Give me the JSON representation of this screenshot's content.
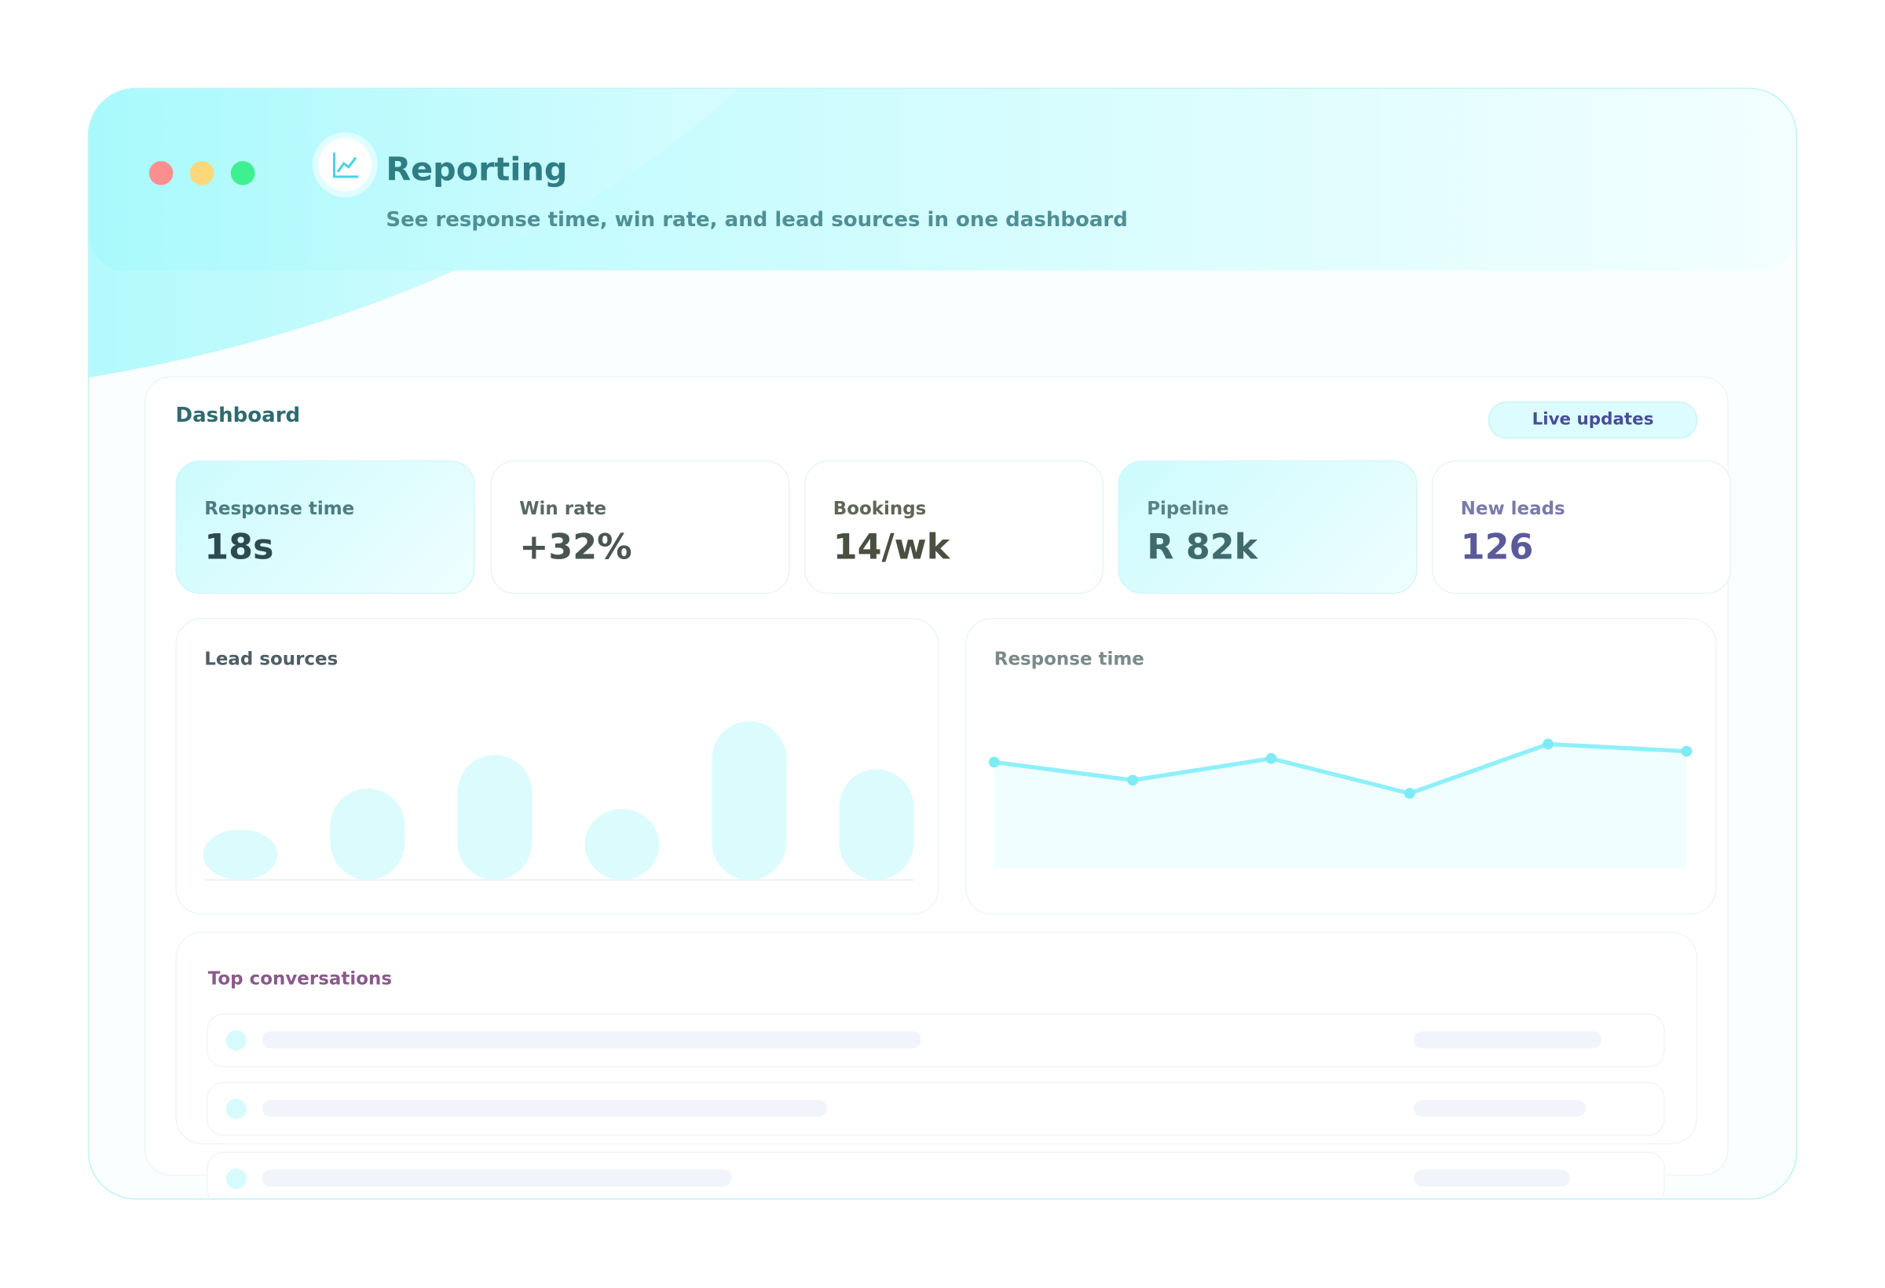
{
  "header": {
    "title": "Reporting",
    "subtitle": "See response time, win rate, and lead sources in one dashboard"
  },
  "dashboard": {
    "title": "Dashboard",
    "badge": "Live updates",
    "kpis": [
      {
        "label": "Response time",
        "value": "18s"
      },
      {
        "label": "Win rate",
        "value": "+32%"
      },
      {
        "label": "Bookings",
        "value": "14/wk"
      },
      {
        "label": "Pipeline",
        "value": "R 82k"
      },
      {
        "label": "New leads",
        "value": "126"
      }
    ],
    "conversations_title": "Top conversations"
  },
  "chart_data": [
    {
      "type": "bar",
      "title": "Lead sources",
      "values": [
        42,
        76,
        104,
        59,
        132,
        92
      ],
      "ylim": [
        0,
        140
      ],
      "color": "#dcfbfd"
    },
    {
      "type": "line",
      "title": "Response time",
      "values": [
        88,
        73,
        91,
        62,
        103,
        97
      ],
      "ylim": [
        0,
        140
      ],
      "color": "#8ef0f8"
    }
  ]
}
